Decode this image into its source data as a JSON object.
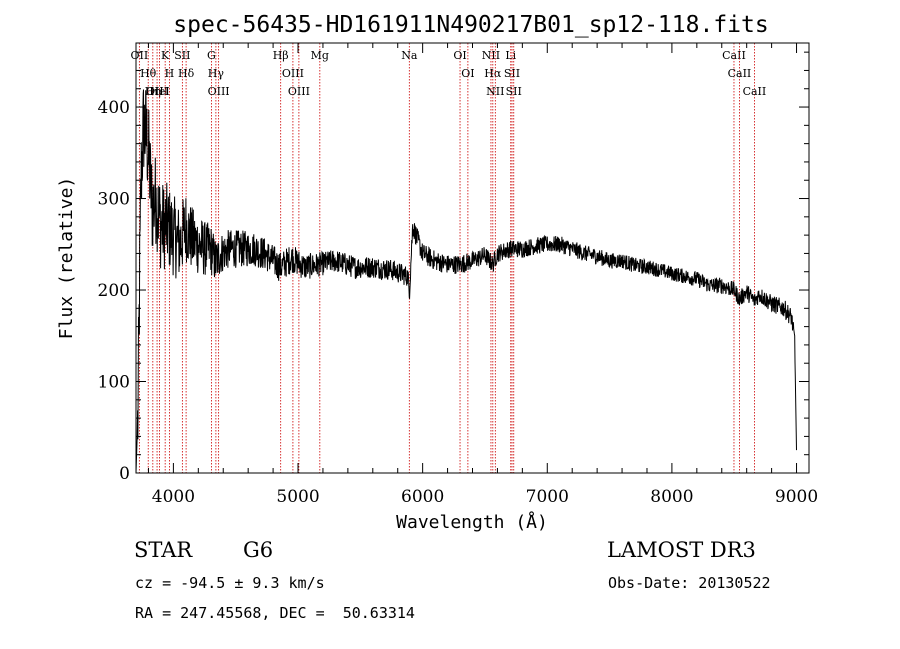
{
  "chart_data": {
    "type": "line",
    "title": "spec-56435-HD161911N490217B01_sp12-118.fits",
    "xlabel": "Wavelength (Å)",
    "ylabel": "Flux (relative)",
    "xlim": [
      3700,
      9100
    ],
    "ylim": [
      0,
      470
    ],
    "xticks": [
      4000,
      5000,
      6000,
      7000,
      8000,
      9000
    ],
    "yticks": [
      0,
      100,
      200,
      300,
      400
    ],
    "spectrum_anchors": {
      "x": [
        3700,
        3715,
        3740,
        3760,
        3780,
        3800,
        3830,
        3860,
        3900,
        3950,
        4000,
        4050,
        4100,
        4150,
        4200,
        4250,
        4300,
        4340,
        4380,
        4450,
        4550,
        4650,
        4750,
        4860,
        4950,
        5050,
        5170,
        5300,
        5450,
        5600,
        5750,
        5880,
        5895,
        5920,
        5960,
        6000,
        6100,
        6200,
        6300,
        6400,
        6500,
        6563,
        6600,
        6700,
        6800,
        6900,
        7000,
        7100,
        7200,
        7300,
        7400,
        7500,
        7600,
        7700,
        7800,
        7900,
        8000,
        8100,
        8200,
        8300,
        8400,
        8500,
        8542,
        8600,
        8662,
        8700,
        8800,
        8900,
        8960,
        8985,
        9000
      ],
      "y": [
        0,
        60,
        320,
        380,
        370,
        350,
        290,
        300,
        270,
        270,
        260,
        250,
        270,
        255,
        250,
        245,
        245,
        230,
        240,
        245,
        245,
        245,
        238,
        225,
        235,
        225,
        228,
        232,
        225,
        225,
        222,
        215,
        200,
        270,
        255,
        240,
        232,
        228,
        228,
        232,
        238,
        228,
        240,
        245,
        245,
        248,
        250,
        250,
        245,
        240,
        237,
        232,
        232,
        227,
        225,
        222,
        218,
        215,
        212,
        205,
        205,
        200,
        190,
        198,
        188,
        195,
        185,
        180,
        170,
        145,
        25
      ]
    },
    "noise_scale": {
      "x": [
        3700,
        4000,
        4400,
        5200,
        6500,
        8000,
        9000
      ],
      "amplitude": [
        60,
        45,
        22,
        13,
        10,
        8,
        10
      ]
    },
    "spectral_lines": [
      {
        "name": "OII",
        "wavelength": 3727
      },
      {
        "name": "Hθ",
        "wavelength": 3798
      },
      {
        "name": "Hη",
        "wavelength": 3835
      },
      {
        "name": "OIII",
        "wavelength": 3869
      },
      {
        "name": "K",
        "wavelength": 3934
      },
      {
        "name": "HeI",
        "wavelength": 3889
      },
      {
        "name": "H",
        "wavelength": 3968
      },
      {
        "name": "SII",
        "wavelength": 4072
      },
      {
        "name": "Hδ",
        "wavelength": 4102
      },
      {
        "name": "G",
        "wavelength": 4305
      },
      {
        "name": "Hγ",
        "wavelength": 4341
      },
      {
        "name": "OIII",
        "wavelength": 4363
      },
      {
        "name": "Hβ",
        "wavelength": 4861
      },
      {
        "name": "OIII",
        "wavelength": 4959
      },
      {
        "name": "OIII",
        "wavelength": 5007
      },
      {
        "name": "Mg",
        "wavelength": 5175
      },
      {
        "name": "Na",
        "wavelength": 5893
      },
      {
        "name": "OI",
        "wavelength": 6300
      },
      {
        "name": "OI",
        "wavelength": 6363
      },
      {
        "name": "NII",
        "wavelength": 6548
      },
      {
        "name": "Hα",
        "wavelength": 6563
      },
      {
        "name": "NII",
        "wavelength": 6583
      },
      {
        "name": "Li",
        "wavelength": 6707
      },
      {
        "name": "SII",
        "wavelength": 6717
      },
      {
        "name": "SII",
        "wavelength": 6731
      },
      {
        "name": "CaII",
        "wavelength": 8498
      },
      {
        "name": "CaII",
        "wavelength": 8542
      },
      {
        "name": "CaII",
        "wavelength": 8662
      }
    ]
  },
  "info": {
    "object_class": "STAR",
    "subclass": "G6",
    "survey": "LAMOST DR3",
    "redshift_line": "cz = -94.5 ± 9.3 km/s",
    "obs_date_line": "Obs-Date: 20130522",
    "coords_line": "RA = 247.45568, DEC =  50.63314"
  },
  "colors": {
    "spectrum": "#000000",
    "line_markers": "#cc0000",
    "axes": "#000000",
    "background": "#ffffff"
  }
}
